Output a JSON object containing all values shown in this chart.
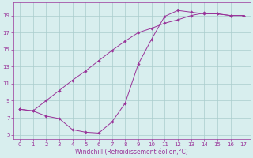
{
  "x_upper": [
    0,
    1,
    2,
    3,
    4,
    5,
    6,
    7,
    8,
    9,
    10,
    11,
    12,
    13,
    14,
    15,
    16,
    17
  ],
  "y_upper": [
    8.0,
    7.8,
    9.0,
    10.2,
    11.4,
    12.5,
    13.7,
    14.9,
    16.0,
    17.0,
    17.5,
    18.1,
    18.5,
    19.0,
    19.3,
    19.2,
    19.0,
    19.0
  ],
  "x_lower": [
    0,
    1,
    2,
    3,
    4,
    5,
    6,
    7,
    8,
    9,
    10,
    11,
    12,
    13,
    14,
    15,
    16,
    17
  ],
  "y_lower": [
    8.0,
    7.8,
    7.2,
    6.9,
    5.6,
    5.3,
    5.2,
    6.5,
    8.7,
    13.3,
    16.2,
    18.9,
    19.6,
    19.4,
    19.2,
    19.2,
    19.0,
    19.0
  ],
  "color": "#993399",
  "bg_color": "#d8eeee",
  "grid_color": "#aacccc",
  "xlabel": "Windchill (Refroidissement éolien,°C)",
  "xlim": [
    -0.5,
    17.5
  ],
  "ylim": [
    4.5,
    20.5
  ],
  "yticks": [
    5,
    7,
    9,
    11,
    13,
    15,
    17,
    19
  ],
  "xticks": [
    0,
    1,
    2,
    3,
    4,
    5,
    6,
    7,
    8,
    9,
    10,
    11,
    12,
    13,
    14,
    15,
    16,
    17
  ],
  "tick_fontsize": 5.0,
  "xlabel_fontsize": 5.5,
  "linewidth": 0.7,
  "markersize": 1.8
}
